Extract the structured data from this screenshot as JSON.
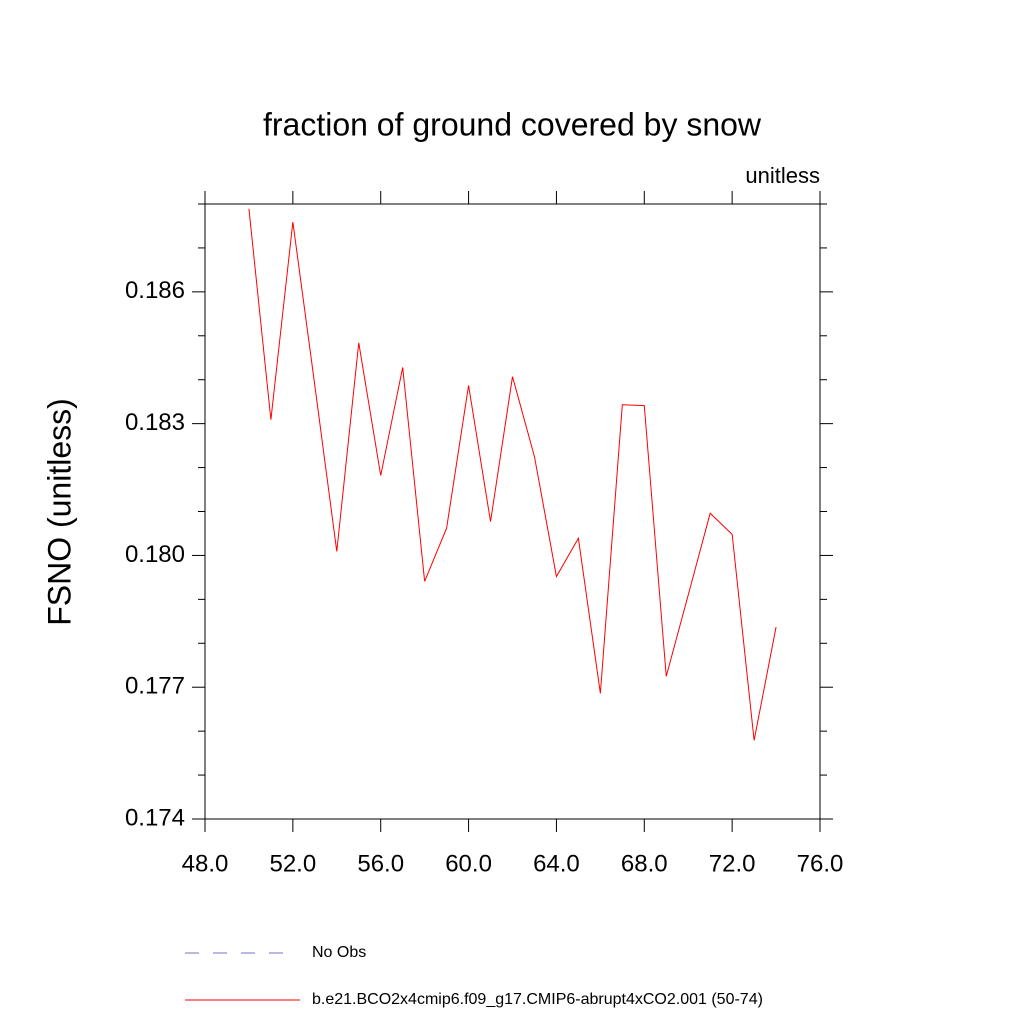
{
  "chart_data": {
    "type": "line",
    "title": "fraction of ground covered by snow",
    "units_label": "unitless",
    "y_label": "FSNO  (unitless)",
    "x": [
      50,
      51,
      52,
      53,
      54,
      55,
      56,
      57,
      58,
      59,
      60,
      61,
      62,
      63,
      64,
      65,
      66,
      67,
      68,
      69,
      70,
      71,
      72,
      73,
      74
    ],
    "series": [
      {
        "name": "b.e21.BCO2x4cmip6.f09_g17.CMIP6-abrupt4xCO2.001 (50-74)",
        "color": "#ff0000",
        "values": [
          0.18789,
          0.18309,
          0.18759,
          0.18387,
          0.18009,
          0.18484,
          0.18182,
          0.18428,
          0.17941,
          0.18062,
          0.18387,
          0.18077,
          0.18407,
          0.18225,
          0.17952,
          0.18039,
          0.17686,
          0.18343,
          0.18341,
          0.17725,
          0.1791,
          0.18096,
          0.18048,
          0.17579,
          0.17837
        ]
      }
    ],
    "reference_lines": [
      {
        "name": "No Obs",
        "color": "#7070c0",
        "dashed": true
      }
    ],
    "xlim": [
      48,
      76
    ],
    "xticks": [
      {
        "value": 48,
        "label": "48.0"
      },
      {
        "value": 52,
        "label": "52.0"
      },
      {
        "value": 56,
        "label": "56.0"
      },
      {
        "value": 60,
        "label": "60.0"
      },
      {
        "value": 64,
        "label": "64.0"
      },
      {
        "value": 68,
        "label": "68.0"
      },
      {
        "value": 72,
        "label": "72.0"
      },
      {
        "value": 76,
        "label": "76.0"
      }
    ],
    "ylim": [
      0.174,
      0.188
    ],
    "yticks": [
      0.174,
      0.177,
      {
        "value": 0.18,
        "label": "0.180"
      },
      0.183,
      0.186
    ],
    "yminorticks": [
      0.175,
      0.176,
      0.178,
      0.179,
      0.181,
      0.182,
      0.184,
      0.185,
      0.187,
      0.188
    ]
  }
}
